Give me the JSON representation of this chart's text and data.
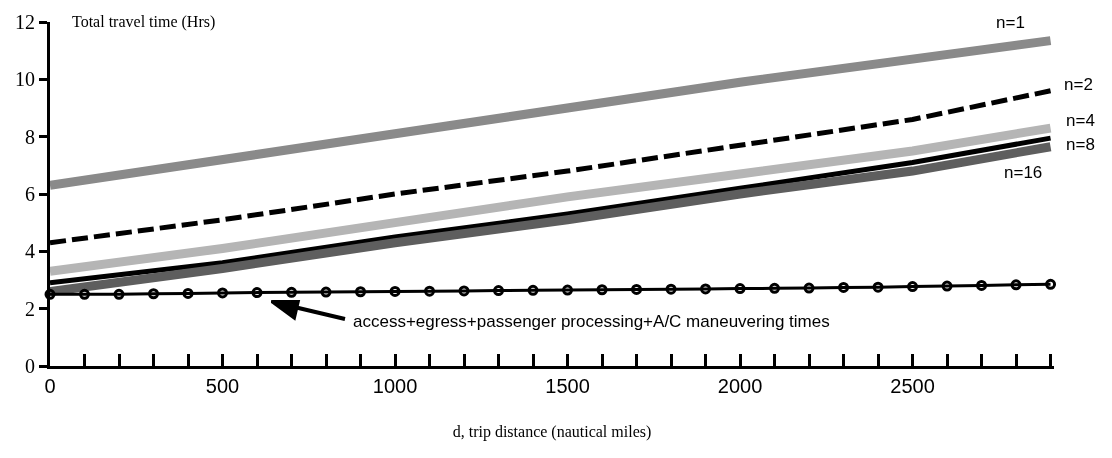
{
  "chart_data": {
    "type": "line",
    "ylabel": "Total travel time (Hrs)",
    "xlabel": "d, trip distance (nautical miles)",
    "xlim": [
      0,
      2910
    ],
    "ylim": [
      0,
      12
    ],
    "xticks": [
      0,
      {
        "value": 100,
        "label": null
      },
      {
        "value": 200,
        "label": null
      },
      {
        "value": 300,
        "label": null
      },
      {
        "value": 400,
        "label": null
      },
      500,
      {
        "value": 600,
        "label": null
      },
      {
        "value": 700,
        "label": null
      },
      {
        "value": 800,
        "label": null
      },
      {
        "value": 900,
        "label": null
      },
      1000,
      {
        "value": 1100,
        "label": null
      },
      {
        "value": 1200,
        "label": null
      },
      {
        "value": 1300,
        "label": null
      },
      {
        "value": 1400,
        "label": null
      },
      1500,
      {
        "value": 1600,
        "label": null
      },
      {
        "value": 1700,
        "label": null
      },
      {
        "value": 1800,
        "label": null
      },
      {
        "value": 1900,
        "label": null
      },
      2000,
      {
        "value": 2100,
        "label": null
      },
      {
        "value": 2200,
        "label": null
      },
      {
        "value": 2300,
        "label": null
      },
      {
        "value": 2400,
        "label": null
      },
      2500,
      {
        "value": 2600,
        "label": null
      },
      {
        "value": 2700,
        "label": null
      },
      {
        "value": 2800,
        "label": null
      },
      {
        "value": 2900,
        "label": null
      }
    ],
    "yticks": [
      0,
      2,
      4,
      6,
      8,
      10,
      12
    ],
    "grid": false,
    "legend": false,
    "marker": "none",
    "line_style": "solid",
    "series": [
      {
        "name": "n=1",
        "color": "#8a8a8a",
        "x": [
          0,
          1000,
          2000,
          2900
        ],
        "values": [
          6.3,
          8.1,
          9.9,
          11.35
        ]
      },
      {
        "name": "n=2",
        "color": "#000000",
        "line_style": "dashed",
        "x": [
          0,
          500,
          1000,
          1500,
          2000,
          2500,
          2900
        ],
        "values": [
          4.3,
          5.1,
          6.0,
          6.8,
          7.7,
          8.6,
          9.6
        ]
      },
      {
        "name": "n=4",
        "color": "#b5b5b5",
        "x": [
          0,
          500,
          1000,
          1500,
          2000,
          2500,
          2900
        ],
        "values": [
          3.3,
          4.1,
          5.0,
          5.9,
          6.7,
          7.5,
          8.3
        ]
      },
      {
        "name": "n=8",
        "color": "#000000",
        "x": [
          0,
          500,
          1000,
          1500,
          2000,
          2500,
          2900
        ],
        "values": [
          2.9,
          3.6,
          4.5,
          5.3,
          6.2,
          7.1,
          7.95
        ]
      },
      {
        "name": "n=16",
        "color": "#5e5e5e",
        "x": [
          0,
          500,
          1000,
          1500,
          2000,
          2500,
          2900
        ],
        "values": [
          2.6,
          3.4,
          4.3,
          5.1,
          6.0,
          6.8,
          7.65
        ]
      },
      {
        "color": "#000000",
        "marker": "circle",
        "x": [
          0,
          100,
          200,
          300,
          400,
          500,
          600,
          700,
          800,
          900,
          1000,
          1100,
          1200,
          1300,
          1400,
          1500,
          1600,
          1700,
          1800,
          1900,
          2000,
          2100,
          2200,
          2300,
          2400,
          2500,
          2600,
          2700,
          2800,
          2900
        ],
        "values": [
          2.5,
          2.5,
          2.5,
          2.52,
          2.53,
          2.55,
          2.56,
          2.57,
          2.58,
          2.59,
          2.6,
          2.61,
          2.62,
          2.63,
          2.64,
          2.65,
          2.66,
          2.67,
          2.68,
          2.69,
          2.7,
          2.71,
          2.72,
          2.74,
          2.75,
          2.77,
          2.79,
          2.81,
          2.83,
          2.85
        ]
      }
    ],
    "annotations": [
      "access+egress+passenger processing+A/C maneuvering times"
    ]
  }
}
